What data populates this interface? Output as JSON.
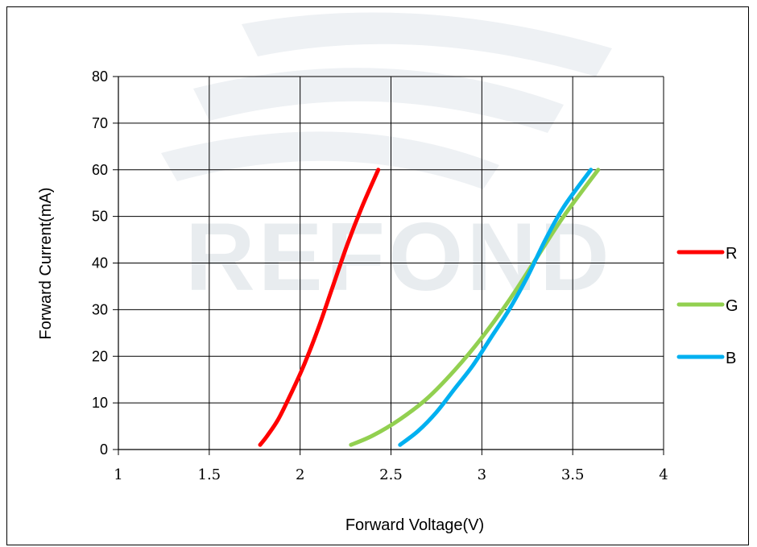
{
  "chart_data": {
    "type": "line",
    "title": "",
    "xlabel": "Forward Voltage(V)",
    "ylabel": "Forward Current(mA)",
    "xlim": [
      1,
      4
    ],
    "ylim": [
      0,
      80
    ],
    "x_ticks": [
      "1",
      "1.5",
      "2",
      "2.5",
      "3",
      "3.5",
      "4"
    ],
    "y_ticks": [
      "0",
      "10",
      "20",
      "30",
      "40",
      "50",
      "60",
      "70",
      "80"
    ],
    "grid": true,
    "legend_position": "right",
    "watermark": "REFOND",
    "series": [
      {
        "name": "R",
        "color": "#ff0000",
        "points": [
          [
            1.78,
            1
          ],
          [
            1.82,
            3
          ],
          [
            1.88,
            6.5
          ],
          [
            1.95,
            12
          ],
          [
            2.02,
            18
          ],
          [
            2.1,
            26
          ],
          [
            2.18,
            35
          ],
          [
            2.26,
            44
          ],
          [
            2.34,
            52
          ],
          [
            2.43,
            60
          ]
        ]
      },
      {
        "name": "G",
        "color": "#92d050",
        "points": [
          [
            2.28,
            1
          ],
          [
            2.4,
            3
          ],
          [
            2.55,
            6.5
          ],
          [
            2.7,
            11
          ],
          [
            2.85,
            17
          ],
          [
            3.0,
            24
          ],
          [
            3.15,
            32
          ],
          [
            3.3,
            41
          ],
          [
            3.45,
            50
          ],
          [
            3.64,
            60
          ]
        ]
      },
      {
        "name": "B",
        "color": "#00b0f0",
        "points": [
          [
            2.55,
            1
          ],
          [
            2.65,
            4
          ],
          [
            2.75,
            8
          ],
          [
            2.85,
            13
          ],
          [
            2.95,
            18
          ],
          [
            3.05,
            24
          ],
          [
            3.15,
            30
          ],
          [
            3.25,
            37
          ],
          [
            3.35,
            45
          ],
          [
            3.45,
            52
          ],
          [
            3.6,
            60
          ]
        ]
      }
    ]
  }
}
